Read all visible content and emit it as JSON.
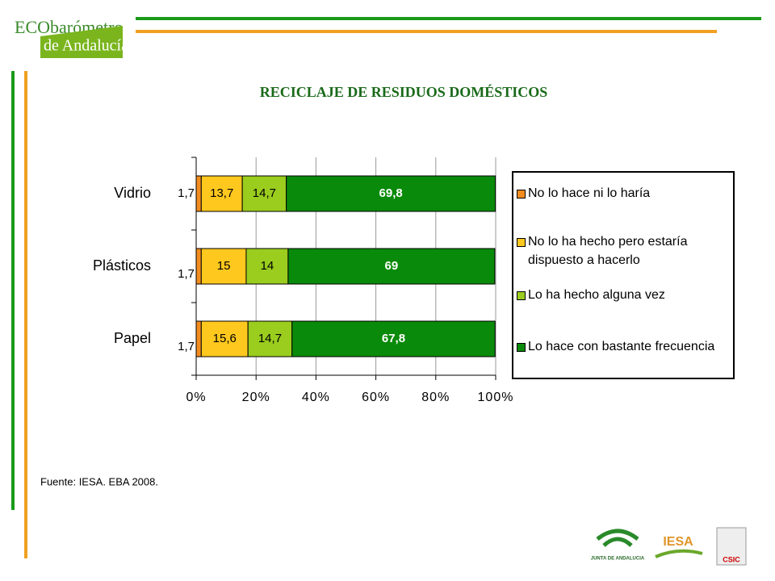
{
  "header": {
    "logo_top": "ECObarómetro",
    "logo_bottom": "de Andalucía"
  },
  "chart_data": {
    "type": "stacked_bar_horizontal",
    "title": "RECICLAJE DE RESIDUOS DOMÉSTICOS",
    "categories": [
      "Vidrio",
      "Plásticos",
      "Papel"
    ],
    "series": [
      {
        "name": "No lo hace ni lo haría",
        "color": "#f28c1e",
        "values": [
          1.7,
          1.7,
          1.7
        ],
        "value_labels": [
          "1,7",
          "1,7",
          "1,7"
        ]
      },
      {
        "name": "No lo ha hecho pero estaría dispuesto a hacerlo",
        "color": "#ffc81e",
        "values": [
          13.7,
          15,
          15.6
        ],
        "value_labels": [
          "13,7",
          "15",
          "15,6"
        ]
      },
      {
        "name": "Lo ha hecho alguna vez",
        "color": "#9acd1e",
        "values": [
          14.7,
          14,
          14.7
        ],
        "value_labels": [
          "14,7",
          "14",
          "14,7"
        ]
      },
      {
        "name": "Lo hace con bastante frecuencia",
        "color": "#0a8a0a",
        "values": [
          69.8,
          69,
          67.8
        ],
        "value_labels": [
          "69,8",
          "69",
          "67,8"
        ]
      }
    ],
    "xlim": [
      0,
      100
    ],
    "xticks": [
      {
        "value": 0,
        "label": "0%"
      },
      {
        "value": 20,
        "label": "20%"
      },
      {
        "value": 40,
        "label": "40%"
      },
      {
        "value": 60,
        "label": "60%"
      },
      {
        "value": 80,
        "label": "80%"
      },
      {
        "value": 100,
        "label": "100%"
      }
    ],
    "grid": true,
    "legend": "right"
  },
  "source": "Fuente: IESA. EBA 2008.",
  "footer": {
    "logo_junta": "JUNTA DE ANDALUCIA",
    "logo_iesa": "IESA",
    "logo_csic": "CSIC"
  }
}
